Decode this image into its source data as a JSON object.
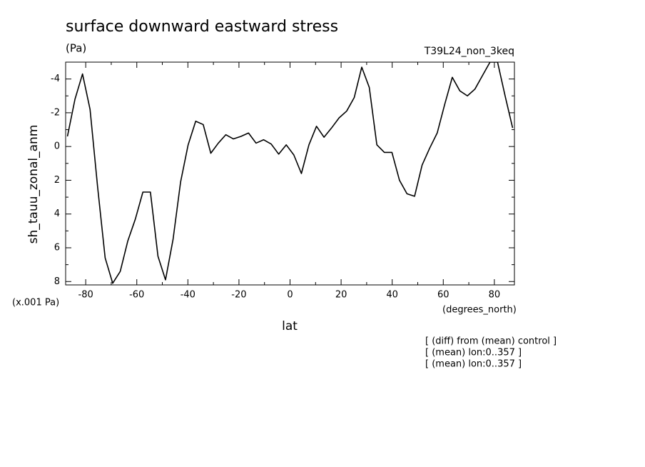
{
  "chart_data": {
    "type": "line",
    "title": "surface downward eastward stress",
    "units": "(Pa)",
    "dataset": "T39L24_non_3keq",
    "y_label": "sh_tauu_zonal_anm",
    "y_scale_label": "(x.001 Pa)",
    "x_units_label": "(degrees_north)",
    "x_label": "lat",
    "notes": [
      "[ (diff) from (mean) control ]",
      "[ (mean) lon:0..357 ]",
      "[ (mean) lon:0..357 ]"
    ],
    "xlim": [
      -87.86,
      87.86
    ],
    "ylim": [
      -5,
      8.2
    ],
    "y_inverted": true,
    "xticks": [
      -80,
      -60,
      -40,
      -20,
      0,
      20,
      40,
      60,
      80
    ],
    "xminorticks": [
      -70,
      -50,
      -30,
      -10,
      10,
      30,
      50,
      70
    ],
    "yticks": [
      -4,
      -2,
      0,
      2,
      4,
      6,
      8
    ],
    "yminorticks": [
      -5,
      -3,
      -1,
      1,
      3,
      5,
      7
    ],
    "x": [
      -87.16,
      -84.21,
      -81.25,
      -78.3,
      -75.34,
      -72.39,
      -69.44,
      -66.48,
      -63.53,
      -60.57,
      -57.62,
      -54.67,
      -51.71,
      -48.76,
      -45.8,
      -42.85,
      -39.9,
      -36.94,
      -33.99,
      -31.03,
      -28.08,
      -25.13,
      -22.17,
      -19.22,
      -16.26,
      -13.31,
      -10.36,
      -7.4,
      -4.45,
      -1.49,
      1.49,
      4.45,
      7.4,
      10.36,
      13.31,
      16.26,
      19.22,
      22.17,
      25.13,
      28.08,
      31.03,
      33.99,
      36.94,
      39.9,
      42.85,
      45.8,
      48.76,
      51.71,
      54.67,
      57.62,
      60.57,
      63.53,
      66.48,
      69.44,
      72.39,
      75.34,
      78.3,
      81.25,
      84.21,
      87.16
    ],
    "series": [
      {
        "color": "#000000",
        "values": [
          -0.6,
          -2.8,
          -4.3,
          -2.2,
          2.4,
          6.6,
          8.1,
          7.4,
          5.6,
          4.3,
          2.7,
          2.7,
          6.5,
          7.9,
          5.5,
          2.1,
          -0.1,
          -1.5,
          -1.3,
          0.4,
          -0.2,
          -0.7,
          -0.45,
          -0.6,
          -0.8,
          -0.2,
          -0.4,
          -0.15,
          0.45,
          -0.1,
          0.5,
          1.6,
          -0.1,
          -1.2,
          -0.55,
          -1.1,
          -1.7,
          -2.1,
          -2.9,
          -4.7,
          -3.5,
          -0.1,
          0.35,
          0.35,
          2.0,
          2.8,
          2.95,
          1.1,
          0.1,
          -0.8,
          -2.5,
          -4.1,
          -3.3,
          -3.0,
          -3.4,
          -4.2,
          -5.0,
          -5.0,
          -3.0,
          -1.1
        ]
      }
    ]
  }
}
